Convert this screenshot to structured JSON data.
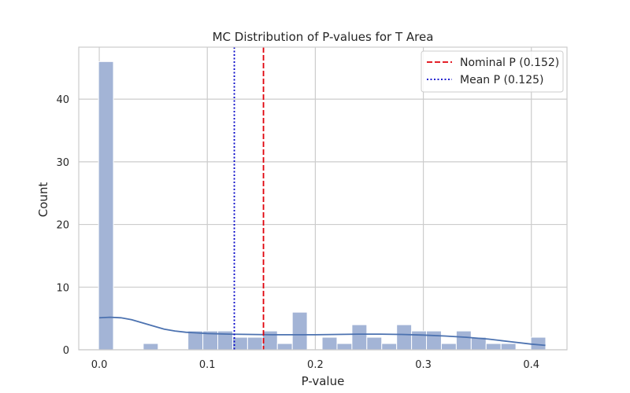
{
  "chart_data": {
    "type": "bar",
    "title": "MC Distribution of P-values for T Area",
    "xlabel": "P-value",
    "ylabel": "Count",
    "xlim": [
      -0.019,
      0.433
    ],
    "ylim": [
      0,
      48.3
    ],
    "xticks": [
      "0.0",
      "0.1",
      "0.2",
      "0.3",
      "0.4"
    ],
    "yticks": [
      "0",
      "10",
      "20",
      "30",
      "40"
    ],
    "xtick_values": [
      0.0,
      0.1,
      0.2,
      0.3,
      0.4
    ],
    "ytick_values": [
      0,
      10,
      20,
      30,
      40
    ],
    "grid": true,
    "legend_position": "top-right",
    "bar_color": "#a3b4d6",
    "histogram": {
      "bin_start": -0.0007,
      "bin_width": 0.0138,
      "counts": [
        46,
        0,
        0,
        1,
        0,
        0,
        3,
        3,
        3,
        2,
        2,
        3,
        1,
        6,
        0,
        2,
        1,
        4,
        2,
        1,
        4,
        3,
        3,
        1,
        3,
        2,
        1,
        1,
        0,
        2
      ]
    },
    "kde": {
      "color": "#4c72b0",
      "x": [
        0.0,
        0.01,
        0.02,
        0.03,
        0.04,
        0.05,
        0.06,
        0.07,
        0.08,
        0.09,
        0.1,
        0.12,
        0.14,
        0.16,
        0.18,
        0.2,
        0.22,
        0.24,
        0.26,
        0.28,
        0.3,
        0.32,
        0.34,
        0.36,
        0.38,
        0.4,
        0.413
      ],
      "y": [
        5.1,
        5.2,
        5.1,
        4.8,
        4.3,
        3.8,
        3.3,
        3.0,
        2.8,
        2.7,
        2.6,
        2.5,
        2.45,
        2.4,
        2.4,
        2.4,
        2.45,
        2.5,
        2.5,
        2.45,
        2.35,
        2.2,
        2.0,
        1.7,
        1.3,
        0.9,
        0.7
      ]
    },
    "reference_lines": [
      {
        "label": "Nominal P (0.152)",
        "x": 0.152,
        "color": "#e0000b",
        "style": "dashed"
      },
      {
        "label": "Mean P (0.125)",
        "x": 0.125,
        "color": "#0000c8",
        "style": "dotted"
      }
    ]
  }
}
